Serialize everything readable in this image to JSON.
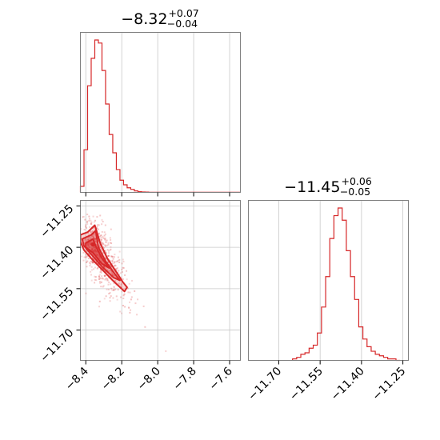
{
  "colors": {
    "series": "#d62728",
    "grid": "#c8c8c8",
    "frame": "#808080"
  },
  "chart_data": [
    {
      "type": "histogram",
      "panel": "top-left",
      "title": {
        "main": "−8.32",
        "sup": "+0.07",
        "sub": "−0.04"
      },
      "xlim": [
        -8.43,
        -7.54
      ],
      "ylim": [
        0,
        1.05
      ],
      "grid": true,
      "xticks": [
        -8.4,
        -8.2,
        -8.0,
        -7.8,
        -7.6
      ],
      "bin_edges": [
        -8.43,
        -8.41,
        -8.39,
        -8.37,
        -8.35,
        -8.33,
        -8.31,
        -8.29,
        -8.27,
        -8.25,
        -8.23,
        -8.21,
        -8.19,
        -8.17,
        -8.15,
        -8.13,
        -8.11,
        -8.09,
        -8.07,
        -8.05,
        -7.54
      ],
      "counts": [
        0.04,
        0.28,
        0.7,
        0.88,
        1.0,
        0.98,
        0.8,
        0.58,
        0.38,
        0.26,
        0.15,
        0.08,
        0.05,
        0.03,
        0.02,
        0.01,
        0.005,
        0.003,
        0.002,
        0.001
      ]
    },
    {
      "type": "histogram",
      "panel": "bottom-right",
      "title": {
        "main": "−11.45",
        "sup": "+0.06",
        "sub": "−0.05"
      },
      "xlim": [
        -11.81,
        -11.23
      ],
      "ylim": [
        0,
        1.05
      ],
      "grid": true,
      "xticks": [
        -11.7,
        -11.55,
        -11.4,
        -11.25
      ],
      "xtick_labels": [
        "−11.70",
        "−11.55",
        "−11.40",
        "−11.25"
      ],
      "bin_edges": [
        -11.65,
        -11.635,
        -11.62,
        -11.605,
        -11.59,
        -11.575,
        -11.56,
        -11.545,
        -11.53,
        -11.515,
        -11.5,
        -11.485,
        -11.47,
        -11.455,
        -11.44,
        -11.425,
        -11.41,
        -11.395,
        -11.38,
        -11.365,
        -11.35,
        -11.335,
        -11.32,
        -11.305,
        -11.29,
        -11.275,
        -11.26
      ],
      "counts": [
        0.01,
        0.02,
        0.04,
        0.05,
        0.08,
        0.1,
        0.18,
        0.35,
        0.55,
        0.8,
        0.95,
        1.0,
        0.92,
        0.72,
        0.55,
        0.4,
        0.22,
        0.14,
        0.09,
        0.06,
        0.04,
        0.03,
        0.02,
        0.01,
        0.01,
        0
      ]
    },
    {
      "type": "scatter",
      "panel": "bottom-left",
      "xlim": [
        -8.43,
        -7.54
      ],
      "ylim": [
        -11.81,
        -11.23
      ],
      "grid": true,
      "xticks": [
        -8.4,
        -8.2,
        -8.0,
        -7.8,
        -7.6
      ],
      "xtick_labels": [
        "−8.4",
        "−8.2",
        "−8.0",
        "−7.8",
        "−7.6"
      ],
      "yticks": [
        -11.25,
        -11.4,
        -11.55,
        -11.7
      ],
      "ytick_labels": [
        "−11.25",
        "−11.40",
        "−11.55",
        "−11.70"
      ],
      "contour_levels": [
        {
          "level": "outer",
          "points": [
            [
              -8.43,
              -11.355
            ],
            [
              -8.39,
              -11.345
            ],
            [
              -8.35,
              -11.32
            ],
            [
              -8.32,
              -11.385
            ],
            [
              -8.28,
              -11.44
            ],
            [
              -8.24,
              -11.48
            ],
            [
              -8.195,
              -11.525
            ],
            [
              -8.17,
              -11.545
            ],
            [
              -8.185,
              -11.56
            ],
            [
              -8.25,
              -11.52
            ],
            [
              -8.31,
              -11.48
            ],
            [
              -8.37,
              -11.44
            ],
            [
              -8.41,
              -11.41
            ],
            [
              -8.43,
              -11.38
            ]
          ]
        },
        {
          "level": "middle",
          "points": [
            [
              -8.42,
              -11.37
            ],
            [
              -8.37,
              -11.355
            ],
            [
              -8.345,
              -11.34
            ],
            [
              -8.33,
              -11.4
            ],
            [
              -8.29,
              -11.45
            ],
            [
              -8.24,
              -11.495
            ],
            [
              -8.21,
              -11.52
            ],
            [
              -8.245,
              -11.51
            ],
            [
              -8.31,
              -11.47
            ],
            [
              -8.37,
              -11.425
            ],
            [
              -8.41,
              -11.395
            ]
          ]
        },
        {
          "level": "inner",
          "points": [
            [
              -8.4,
              -11.385
            ],
            [
              -8.36,
              -11.37
            ],
            [
              -8.345,
              -11.395
            ],
            [
              -8.31,
              -11.44
            ],
            [
              -8.27,
              -11.475
            ],
            [
              -8.31,
              -11.46
            ],
            [
              -8.36,
              -11.42
            ],
            [
              -8.4,
              -11.4
            ]
          ]
        }
      ],
      "peak": [
        -8.36,
        -11.39
      ]
    }
  ]
}
